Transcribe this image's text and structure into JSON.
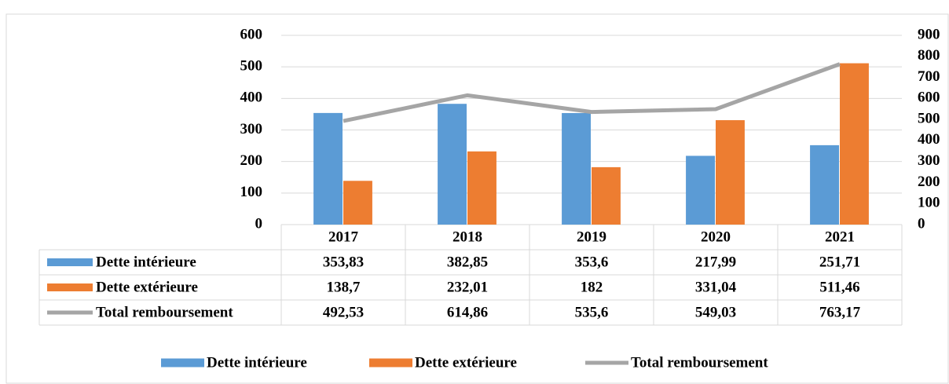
{
  "chart_data": {
    "type": "bar",
    "categories": [
      "2017",
      "2018",
      "2019",
      "2020",
      "2021"
    ],
    "series": [
      {
        "name": "Dette intérieure",
        "color": "#5b9bd5",
        "values": [
          353.83,
          382.85,
          353.6,
          217.99,
          251.71
        ],
        "value_labels": [
          "353,83",
          "382,85",
          "353,6",
          "217,99",
          "251,71"
        ]
      },
      {
        "name": "Dette extérieure",
        "color": "#ed7d31",
        "values": [
          138.7,
          232.01,
          182,
          331.04,
          511.46
        ],
        "value_labels": [
          "138,7",
          "232,01",
          "182",
          "331,04",
          "511,46"
        ]
      },
      {
        "name": "Total remboursement",
        "color": "#a5a5a5",
        "type": "line",
        "axis": "y2",
        "values": [
          492.53,
          614.86,
          535.6,
          549.03,
          763.17
        ],
        "value_labels": [
          "492,53",
          "614,86",
          "535,6",
          "549,03",
          "763,17"
        ]
      }
    ],
    "ylim": [
      0,
      600
    ],
    "yticks": [
      0,
      100,
      200,
      300,
      400,
      500,
      600
    ],
    "y2lim": [
      0,
      900
    ],
    "y2ticks": [
      0,
      100,
      200,
      300,
      400,
      500,
      600,
      700,
      800,
      900
    ],
    "grid": true,
    "legend": "bottom"
  }
}
